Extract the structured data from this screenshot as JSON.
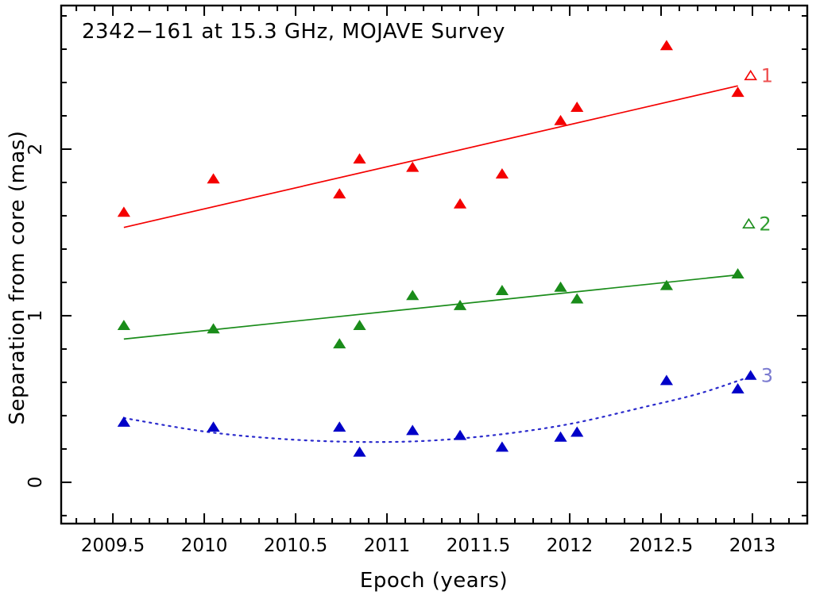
{
  "figure": {
    "title": "2342−161 at 15.3 GHz, MOJAVE Survey",
    "xlabel": "Epoch (years)",
    "ylabel": "Separation from core (mas)"
  },
  "chart_data": {
    "type": "scatter",
    "title": "2342−161 at 15.3 GHz, MOJAVE Survey",
    "xlabel": "Epoch (years)",
    "ylabel": "Separation from core (mas)",
    "xlim": [
      2009.217,
      2013.3
    ],
    "ylim": [
      -0.248,
      2.862
    ],
    "grid": false,
    "x_major_ticks": [
      2009.5,
      2010,
      2010.5,
      2011,
      2011.5,
      2012,
      2012.5,
      2013
    ],
    "x_major_labels": [
      "2009.5",
      "2010",
      "2010.5",
      "2011",
      "2011.5",
      "2012",
      "2012.5",
      "2013"
    ],
    "x_minor_step": 0.1,
    "y_major_ticks": [
      0,
      1,
      2
    ],
    "y_major_labels": [
      "0",
      "1",
      "2"
    ],
    "y_minor_step": 0.2,
    "epochs": [
      2009.56,
      2010.05,
      2010.74,
      2010.85,
      2011.14,
      2011.4,
      2011.63,
      2011.95,
      2012.04,
      2012.53,
      2012.92
    ],
    "series": [
      {
        "name": "component-1",
        "label": "1",
        "color": "#f40000",
        "line_color": "#f40000",
        "label_color": "#ee5050",
        "marker": "filled-triangle",
        "line_style": "solid",
        "values": [
          1.62,
          1.82,
          1.73,
          1.94,
          1.89,
          1.67,
          1.85,
          2.17,
          2.25,
          2.62,
          2.34
        ],
        "fit_line": {
          "x": [
            2009.56,
            2012.92
          ],
          "y": [
            1.53,
            2.38
          ]
        },
        "tag": {
          "x": 2012.99,
          "y": 2.44,
          "marker": "open-triangle"
        }
      },
      {
        "name": "component-2",
        "label": "2",
        "color": "#1a8c1a",
        "line_color": "#1a8c1a",
        "label_color": "#2f9e2f",
        "marker": "filled-triangle",
        "line_style": "solid",
        "values": [
          0.94,
          0.92,
          0.83,
          0.94,
          1.12,
          1.06,
          1.15,
          1.17,
          1.1,
          1.18,
          1.25
        ],
        "fit_line": {
          "x": [
            2009.56,
            2012.92
          ],
          "y": [
            0.86,
            1.245
          ]
        },
        "tag": {
          "x": 2012.98,
          "y": 1.55,
          "marker": "open-triangle"
        }
      },
      {
        "name": "component-3",
        "label": "3",
        "color": "#0000c8",
        "line_color": "#2a2acc",
        "label_color": "#7b7bd0",
        "marker": "filled-triangle",
        "line_style": "dotted",
        "values": [
          0.36,
          0.33,
          0.33,
          0.18,
          0.31,
          0.28,
          0.21,
          0.27,
          0.3,
          0.61,
          0.56
        ],
        "fit_curve": {
          "x": [
            2009.56,
            2010.0,
            2010.4,
            2010.8,
            2011.2,
            2011.6,
            2012.0,
            2012.4,
            2012.7,
            2012.95
          ],
          "y": [
            0.386,
            0.305,
            0.262,
            0.243,
            0.248,
            0.285,
            0.35,
            0.45,
            0.53,
            0.62
          ]
        },
        "tag": {
          "x": 2012.99,
          "y": 0.64,
          "marker": "filled-triangle"
        }
      }
    ]
  }
}
